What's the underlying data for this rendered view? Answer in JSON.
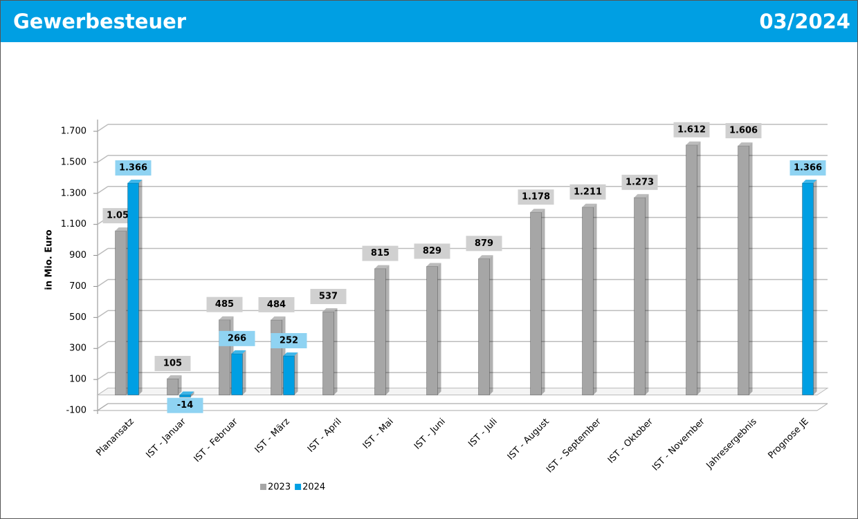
{
  "header": {
    "title": "Gewerbesteuer",
    "period": "03/2024"
  },
  "chart_data": {
    "type": "bar",
    "y_label": "in Mio. Euro",
    "categories": [
      "Planansatz",
      "IST - Januar",
      "IST - Februar",
      "IST - März",
      "IST - April",
      "IST - Mai",
      "IST - Juni",
      "IST - Juli",
      "IST - August",
      "IST - September",
      "IST - Oktober",
      "IST - November",
      "Jahresergebnis",
      "Prognose JE"
    ],
    "series": [
      {
        "name": "2023",
        "color": "#a6a6a6",
        "values": [
          1058,
          105,
          485,
          484,
          537,
          815,
          829,
          879,
          1178,
          1211,
          1273,
          1612,
          1606,
          null
        ],
        "value_labels": [
          "1.058",
          "105",
          "485",
          "484",
          "537",
          "815",
          "829",
          "879",
          "1.178",
          "1.211",
          "1.273",
          "1.612",
          "1.606",
          null
        ]
      },
      {
        "name": "2024",
        "color": "#009fe3",
        "values": [
          1366,
          -14,
          266,
          252,
          null,
          null,
          null,
          null,
          null,
          null,
          null,
          null,
          null,
          1366
        ],
        "value_labels": [
          "1.366",
          "-14",
          "266",
          "252",
          null,
          null,
          null,
          null,
          null,
          null,
          null,
          null,
          null,
          "1.366"
        ]
      }
    ],
    "ylim": [
      -100,
      1700
    ],
    "yticks": [
      -100,
      100,
      300,
      500,
      700,
      900,
      {
        "value": 1100,
        "label": "1.100"
      },
      {
        "value": 1300,
        "label": "1.300"
      },
      {
        "value": 1500,
        "label": "1.500"
      },
      {
        "value": 1700,
        "label": "1.700"
      }
    ],
    "grid": true,
    "legend": "bottom"
  }
}
